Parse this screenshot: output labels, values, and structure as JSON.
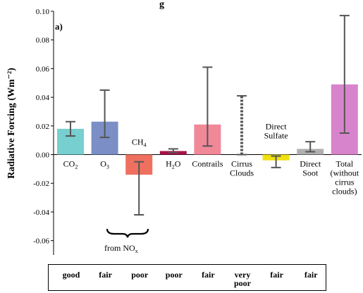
{
  "chart_data": {
    "type": "bar",
    "title_fragment": "g",
    "panel_label": "a)",
    "ylabel": "Radiative Forcing (Wm⁻²)",
    "ylim": [
      -0.07,
      0.1
    ],
    "yticks": [
      -0.06,
      -0.04,
      -0.02,
      0.0,
      0.02,
      0.04,
      0.06,
      0.08,
      0.1
    ],
    "ytick_labels": [
      "-0.06",
      "-0.04",
      "-0.02",
      "0.00",
      "0.02",
      "0.04",
      "0.06",
      "0.08",
      "0.10"
    ],
    "grid": false,
    "categories": [
      {
        "label": "CO",
        "sub": "2",
        "label2": "",
        "value": 0.018,
        "err_low": 0.013,
        "err_high": 0.023,
        "color": "#77cfcf",
        "label_pos": "below"
      },
      {
        "label": "O",
        "sub": "3",
        "label2": "",
        "value": 0.023,
        "err_low": 0.012,
        "err_high": 0.045,
        "color": "#7b8fc6",
        "label_pos": "below"
      },
      {
        "label": "CH",
        "sub": "4",
        "label2": "",
        "value": -0.014,
        "err_low": -0.042,
        "err_high": -0.005,
        "color": "#f07060",
        "label_pos": "above"
      },
      {
        "label": "H",
        "sub": "2",
        "label_after": "O",
        "label2": "",
        "value": 0.0025,
        "err_low": 0.0015,
        "err_high": 0.004,
        "color": "#a8124a",
        "label_pos": "below"
      },
      {
        "label": "Contrails",
        "sub": "",
        "label2": "",
        "value": 0.021,
        "err_low": 0.006,
        "err_high": 0.061,
        "color": "#f08898",
        "label_pos": "below"
      },
      {
        "label": "Cirrus",
        "sub": "",
        "label2": "Clouds",
        "value": 0.0,
        "err_low": 0.0,
        "err_high": 0.041,
        "color": "#000000",
        "label_pos": "below",
        "dashed": true
      },
      {
        "label": "Direct",
        "sub": "",
        "label2": "Sulfate",
        "value": -0.004,
        "err_low": -0.009,
        "err_high": -0.001,
        "color": "#f0e010",
        "label_pos": "above"
      },
      {
        "label": "Direct",
        "sub": "",
        "label2": "Soot",
        "value": 0.004,
        "err_low": 0.002,
        "err_high": 0.009,
        "color": "#b0b0b0",
        "label_pos": "below"
      },
      {
        "label": "Total",
        "sub": "",
        "label2": "(without",
        "label3": "cirrus",
        "label4": "clouds)",
        "value": 0.049,
        "err_low": 0.015,
        "err_high": 0.097,
        "color": "#d884cc",
        "label_pos": "below"
      }
    ],
    "annotation": {
      "text": "from NO",
      "sub": "x"
    }
  },
  "confidence": [
    "good",
    "fair",
    "poor",
    "poor",
    "fair",
    "very poor",
    "fair",
    "fair"
  ]
}
